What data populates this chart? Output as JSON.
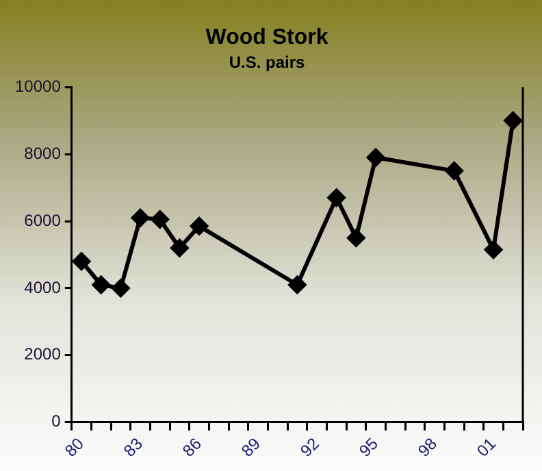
{
  "chart_data": {
    "type": "line",
    "title": "Wood Stork",
    "subtitle": "U.S. pairs",
    "categories": [
      "80",
      null,
      null,
      "83",
      null,
      null,
      "86",
      null,
      null,
      "89",
      null,
      null,
      "92",
      null,
      null,
      "95",
      null,
      null,
      "98",
      null,
      null,
      "01",
      null
    ],
    "series": [
      {
        "color": "#000000",
        "values": [
          4800,
          4100,
          4000,
          6100,
          6050,
          5200,
          5850,
          null,
          null,
          null,
          null,
          4100,
          null,
          6700,
          5500,
          7900,
          null,
          null,
          null,
          7500,
          null,
          5150,
          9000
        ]
      }
    ],
    "ylim": [
      0,
      10000
    ],
    "yticks": [
      0,
      2000,
      4000,
      6000,
      8000,
      10000
    ],
    "grid": false,
    "legend": false,
    "marker": "diamond",
    "line_style": "solid"
  }
}
